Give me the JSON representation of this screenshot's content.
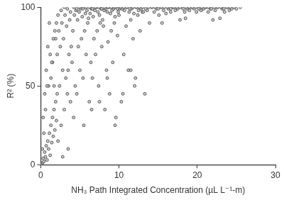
{
  "chart_data": {
    "type": "scatter",
    "x_label": "NH₃ Path Integrated Concentration (µL L⁻¹-m)",
    "y_label": "R² (%)",
    "xlim": [
      0,
      30
    ],
    "xticks": [
      0,
      10,
      20,
      30
    ],
    "ylim": [
      0,
      100
    ],
    "yticks": [
      0,
      50,
      100
    ],
    "grid": false,
    "marker": "circle",
    "color": "#3a3a3a",
    "x": [
      0.2,
      0.3,
      0.4,
      0.5,
      0.6,
      0.7,
      0.8,
      0.9,
      1.0,
      1.1,
      1.2,
      1.3,
      1.4,
      1.5,
      1.6,
      1.7,
      1.8,
      1.9,
      2.0,
      2.1,
      0.3,
      0.5,
      0.7,
      0.9,
      1.1,
      1.3,
      1.5,
      1.7,
      1.9,
      2.1,
      2.2,
      2.4,
      2.6,
      2.8,
      3.0,
      3.2,
      3.4,
      3.6,
      3.8,
      4.0,
      2.3,
      2.5,
      2.7,
      2.9,
      3.1,
      3.3,
      3.5,
      3.7,
      3.9,
      4.1,
      4.2,
      4.4,
      4.6,
      4.8,
      5.0,
      5.2,
      5.4,
      5.6,
      5.8,
      6.0,
      4.3,
      4.5,
      4.7,
      4.9,
      5.1,
      5.3,
      5.5,
      5.7,
      5.9,
      6.1,
      6.2,
      6.4,
      6.6,
      6.8,
      7.0,
      7.2,
      7.4,
      7.6,
      7.8,
      8.0,
      6.3,
      6.5,
      6.7,
      6.9,
      7.1,
      7.3,
      7.5,
      7.7,
      7.9,
      8.1,
      8.2,
      8.4,
      8.6,
      8.8,
      9.0,
      9.2,
      9.4,
      9.6,
      9.8,
      10.0,
      8.3,
      8.5,
      8.7,
      8.9,
      9.1,
      9.3,
      9.5,
      9.7,
      9.9,
      10.1,
      10.3,
      10.6,
      10.9,
      11.2,
      11.5,
      11.8,
      12.1,
      12.4,
      12.7,
      13.0,
      10.4,
      10.7,
      11.0,
      11.3,
      11.6,
      11.9,
      12.2,
      12.5,
      12.8,
      13.1,
      13.3,
      13.6,
      13.9,
      14.2,
      14.5,
      14.8,
      15.1,
      15.4,
      15.7,
      16.0,
      16.3,
      16.6,
      16.9,
      17.2,
      17.5,
      17.8,
      18.1,
      18.4,
      18.7,
      19.0,
      19.3,
      19.6,
      19.9,
      20.2,
      20.5,
      20.8,
      21.1,
      21.4,
      21.7,
      22.0,
      22.3,
      22.6,
      22.9,
      23.2,
      23.5,
      23.8,
      24.1,
      24.4,
      24.7,
      25.0,
      1.0,
      1.4,
      1.8,
      2.2,
      2.6,
      3.0,
      3.4,
      3.8,
      4.2,
      4.6,
      5.0,
      5.4,
      5.8,
      6.2,
      6.6,
      7.0,
      7.4,
      7.8,
      8.2,
      8.6,
      9.0,
      9.4,
      9.8,
      10.2,
      10.6,
      11.0,
      11.4,
      11.8,
      12.2,
      12.6,
      13.0,
      13.4,
      13.8,
      14.2,
      14.6,
      15.0,
      15.4,
      15.8,
      16.2,
      16.6,
      17.0,
      17.4,
      17.8,
      18.2,
      18.6,
      19.0,
      19.4,
      19.8,
      20.2,
      20.6,
      21.0,
      21.4,
      21.8,
      22.2,
      22.6,
      23.0,
      23.4,
      23.8,
      24.2,
      25.5,
      9.5,
      10.5,
      11.5,
      12.0,
      8.5,
      7.5,
      6.5,
      5.5,
      3.5,
      2.8,
      0.1,
      0.2,
      0.4,
      0.6,
      0.8,
      1.2,
      1.6,
      2.0,
      15.5,
      18.5
    ],
    "values": [
      1,
      4,
      2,
      8,
      5,
      12,
      3,
      15,
      10,
      20,
      6,
      25,
      14,
      30,
      18,
      35,
      22,
      40,
      28,
      45,
      30,
      45,
      60,
      75,
      90,
      55,
      65,
      50,
      80,
      70,
      15,
      50,
      25,
      60,
      35,
      55,
      45,
      70,
      40,
      65,
      85,
      75,
      90,
      80,
      95,
      88,
      60,
      92,
      75,
      85,
      30,
      50,
      45,
      75,
      60,
      80,
      55,
      85,
      70,
      90,
      95,
      98,
      92,
      97,
      99,
      94,
      100,
      96,
      98,
      93,
      40,
      65,
      55,
      80,
      70,
      85,
      50,
      90,
      75,
      88,
      96,
      99,
      94,
      98,
      100,
      97,
      95,
      99,
      92,
      98,
      35,
      60,
      78,
      45,
      85,
      65,
      90,
      30,
      82,
      95,
      99,
      97,
      100,
      96,
      98,
      99,
      94,
      100,
      97,
      99,
      40,
      70,
      88,
      60,
      92,
      80,
      55,
      95,
      85,
      97,
      99,
      98,
      100,
      97,
      99,
      96,
      100,
      98,
      99,
      97,
      45,
      98,
      90,
      100,
      97,
      99,
      95,
      100,
      98,
      96,
      99,
      97,
      100,
      98,
      99,
      92,
      100,
      97,
      99,
      98,
      100,
      99,
      97,
      100,
      98,
      99,
      100,
      97,
      99,
      92,
      98,
      100,
      93,
      99,
      97,
      100,
      98,
      99,
      100,
      99,
      50,
      65,
      85,
      95,
      98,
      100,
      99,
      97,
      100,
      99,
      100,
      99,
      100,
      100,
      99,
      100,
      100,
      99,
      100,
      100,
      100,
      100,
      99,
      100,
      100,
      100,
      99,
      100,
      100,
      100,
      100,
      99,
      100,
      100,
      100,
      99,
      100,
      100,
      100,
      99,
      100,
      100,
      100,
      99,
      100,
      100,
      100,
      100,
      99,
      100,
      100,
      100,
      99,
      100,
      100,
      100,
      99,
      100,
      100,
      100,
      25,
      45,
      60,
      50,
      55,
      40,
      35,
      25,
      10,
      5,
      0,
      10,
      20,
      35,
      50,
      70,
      80,
      90,
      90,
      93
    ]
  }
}
